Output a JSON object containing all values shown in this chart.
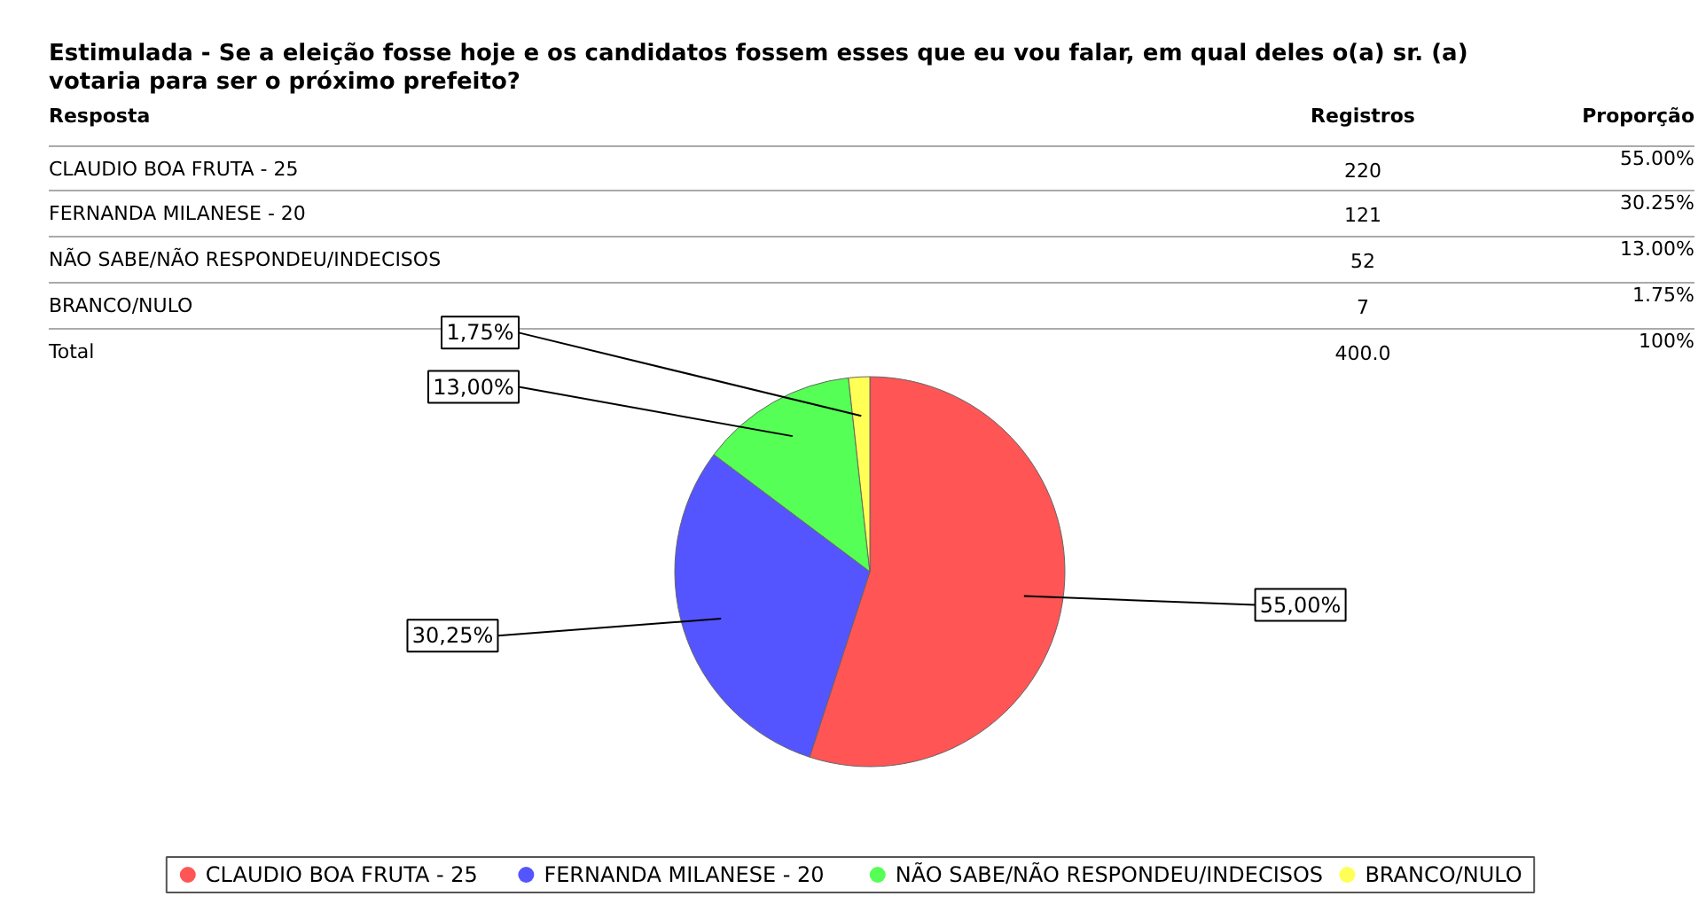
{
  "chart_data": {
    "type": "pie",
    "title": "Estimulada - Se a eleição fosse hoje e os candidatos fossem esses que eu vou falar, em qual deles o(a) sr. (a) votaria para ser o próximo prefeito?",
    "categories": [
      "CLAUDIO BOA FRUTA - 25",
      "FERNANDA MILANESE  - 20",
      "NÃO SABE/NÃO RESPONDEU/INDECISOS",
      "BRANCO/NULO"
    ],
    "values": [
      55.0,
      30.25,
      13.0,
      1.75
    ],
    "colors": [
      "#ff5555",
      "#5555ff",
      "#55ff55",
      "#ffff55"
    ],
    "value_labels": [
      "55,00%",
      "30,25%",
      "13,00%",
      "1,75%"
    ],
    "annotations": [
      "Resposta",
      "Registros",
      "Proporção",
      "CLAUDIO BOA FRUTA - 25",
      "220",
      "55.00%",
      "FERNANDA MILANESE  - 20",
      "121",
      "30.25%",
      "NÃO SABE/NÃO RESPONDEU/INDECISOS",
      "52",
      "13.00%",
      "BRANCO/NULO",
      "7",
      "1.75%",
      "Total",
      "400.0",
      "100%"
    ],
    "legend": "bottom"
  }
}
